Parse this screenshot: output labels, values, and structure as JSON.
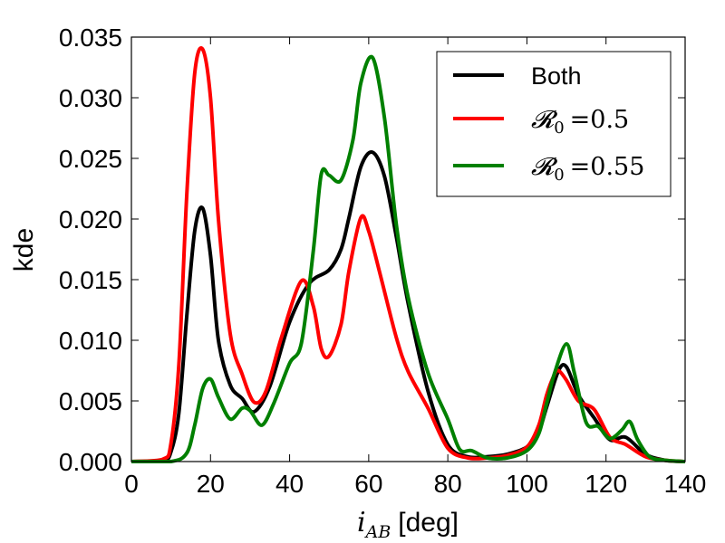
{
  "chart_data": {
    "type": "line",
    "title": "",
    "xlabel_var": "i",
    "xlabel_sub": "AB",
    "xlabel_unit": "[deg]",
    "ylabel": "kde",
    "xlim": [
      0,
      140
    ],
    "ylim": [
      0,
      0.035
    ],
    "xticks": [
      0,
      20,
      40,
      60,
      80,
      100,
      120,
      140
    ],
    "xtick_labels": [
      "0",
      "20",
      "40",
      "60",
      "80",
      "100",
      "120",
      "140"
    ],
    "yticks": [
      0,
      0.005,
      0.01,
      0.015,
      0.02,
      0.025,
      0.03,
      0.035
    ],
    "ytick_labels": [
      "0.000",
      "0.005",
      "0.010",
      "0.015",
      "0.020",
      "0.025",
      "0.030",
      "0.035"
    ],
    "grid": false,
    "legend_position": "top-right",
    "series": [
      {
        "name": "Both",
        "legend_text": "Both",
        "color": "#000000",
        "x": [
          0,
          8,
          10,
          12,
          14,
          16,
          18,
          20,
          22,
          25,
          28,
          31,
          35,
          40,
          45,
          50,
          53,
          55,
          58,
          61,
          64,
          67,
          70,
          75,
          80,
          85,
          90,
          95,
          100,
          103,
          105,
          108,
          110,
          113,
          117,
          121,
          125,
          130,
          135,
          140
        ],
        "y": [
          0,
          0.0001,
          0.0008,
          0.004,
          0.012,
          0.019,
          0.0209,
          0.017,
          0.01,
          0.0063,
          0.0052,
          0.0041,
          0.0062,
          0.0115,
          0.0147,
          0.0158,
          0.0175,
          0.0201,
          0.0243,
          0.0255,
          0.0235,
          0.0185,
          0.013,
          0.0058,
          0.0014,
          0.0004,
          0.0004,
          0.0006,
          0.0012,
          0.0025,
          0.0045,
          0.0075,
          0.0078,
          0.0055,
          0.0036,
          0.0018,
          0.002,
          0.0006,
          0.0001,
          0
        ]
      },
      {
        "name": "R0 = 0.5",
        "legend_prefix": "𝓡",
        "legend_sub": "0",
        "legend_value": "=0.5",
        "color": "#ff0000",
        "x": [
          0,
          8,
          10,
          12,
          14,
          16,
          18,
          20,
          22,
          25,
          28,
          31,
          34,
          38,
          43,
          46,
          48,
          50,
          53,
          55,
          58,
          60,
          63,
          67,
          70,
          75,
          80,
          85,
          90,
          95,
          100,
          103,
          105,
          107,
          108,
          110,
          113,
          117,
          121,
          125,
          130,
          135,
          140
        ],
        "y": [
          0,
          0.0002,
          0.0015,
          0.008,
          0.022,
          0.032,
          0.034,
          0.03,
          0.02,
          0.0105,
          0.0072,
          0.0049,
          0.0058,
          0.0103,
          0.0149,
          0.0128,
          0.0093,
          0.0087,
          0.0113,
          0.0157,
          0.0201,
          0.019,
          0.0153,
          0.0102,
          0.0074,
          0.0044,
          0.0011,
          0.0003,
          0.0003,
          0.0005,
          0.0012,
          0.003,
          0.0055,
          0.0072,
          0.0075,
          0.0067,
          0.005,
          0.0043,
          0.002,
          0.0014,
          0.0004,
          0.0001,
          0
        ]
      },
      {
        "name": "R0 = 0.55",
        "legend_prefix": "𝓡",
        "legend_sub": "0",
        "legend_value": "=0.55",
        "color": "#008000",
        "x": [
          0,
          10,
          14,
          16,
          18,
          20,
          22,
          25,
          28,
          30,
          33,
          36,
          40,
          43,
          46,
          48,
          50,
          53,
          56,
          58,
          61,
          64,
          67,
          70,
          75,
          80,
          83,
          86,
          90,
          95,
          100,
          103,
          105,
          107,
          110,
          112,
          115,
          118,
          121,
          124,
          126,
          128,
          131,
          135,
          140
        ],
        "y": [
          0,
          0,
          0.0007,
          0.003,
          0.006,
          0.0068,
          0.0053,
          0.0035,
          0.0044,
          0.0042,
          0.003,
          0.0048,
          0.0081,
          0.0098,
          0.0174,
          0.0237,
          0.0236,
          0.0232,
          0.0265,
          0.0312,
          0.0333,
          0.0283,
          0.0195,
          0.0135,
          0.0073,
          0.0035,
          0.001,
          0.0009,
          0.0003,
          0.0003,
          0.0009,
          0.0023,
          0.0048,
          0.0073,
          0.0097,
          0.0073,
          0.0032,
          0.0029,
          0.0019,
          0.0026,
          0.0033,
          0.0018,
          0.0004,
          0.0001,
          0
        ]
      }
    ]
  }
}
